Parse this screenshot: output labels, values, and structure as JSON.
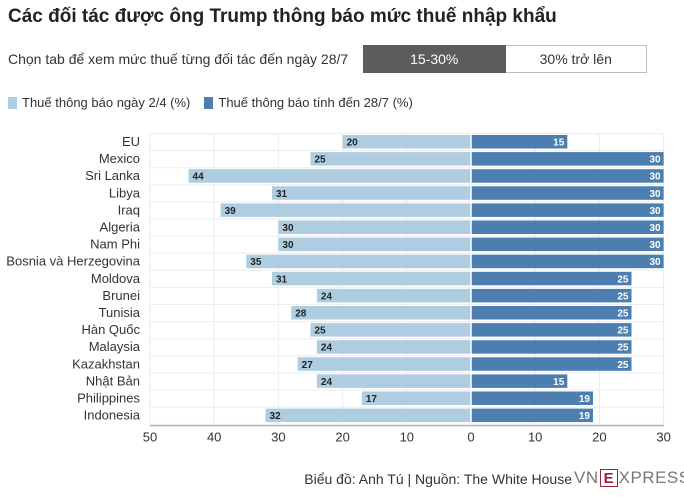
{
  "header": {
    "title": "Các đối tác được ông Trump thông báo mức thuế nhập khẩu",
    "subtitle": "Chọn tab để xem mức thuế từng đối tác đến ngày 28/7"
  },
  "tabs": [
    {
      "label": "15-30%",
      "active": true
    },
    {
      "label": "30% trở lên",
      "active": false
    }
  ],
  "legend": [
    {
      "label": "Thuế thông báo ngày 2/4 (%)",
      "color": "#aecde1"
    },
    {
      "label": "Thuế thông báo tính đến 28/7 (%)",
      "color": "#4c7fb0"
    }
  ],
  "footer": {
    "credit": "Biểu đồ: Anh Tú | Nguồn: The White House",
    "logo_left": "VN",
    "logo_box": "E",
    "logo_right": "XPRESS"
  },
  "chart_data": {
    "type": "bar",
    "orientation": "horizontal-diverging",
    "categories": [
      "EU",
      "Mexico",
      "Sri Lanka",
      "Libya",
      "Iraq",
      "Algeria",
      "Nam Phi",
      "Bosnia và Herzegovina",
      "Moldova",
      "Brunei",
      "Tunisia",
      "Hàn Quốc",
      "Malaysia",
      "Kazakhstan",
      "Nhật Bản",
      "Philippines",
      "Indonesia"
    ],
    "series": [
      {
        "name": "Thuế thông báo ngày 2/4 (%)",
        "side": "left",
        "color": "#aecde1",
        "values": [
          20,
          25,
          44,
          31,
          39,
          30,
          30,
          35,
          31,
          24,
          28,
          25,
          24,
          27,
          24,
          17,
          32
        ]
      },
      {
        "name": "Thuế thông báo tính đến 28/7 (%)",
        "side": "right",
        "color": "#4c7fb0",
        "values": [
          15,
          30,
          30,
          30,
          30,
          30,
          30,
          30,
          25,
          25,
          25,
          25,
          25,
          25,
          15,
          19,
          19
        ]
      }
    ],
    "xticks": [
      "50",
      "40",
      "30",
      "20",
      "10",
      "0",
      "10",
      "20",
      "30"
    ],
    "xlim_left": [
      50,
      0
    ],
    "xlim_right": [
      0,
      30
    ],
    "grid": true
  }
}
